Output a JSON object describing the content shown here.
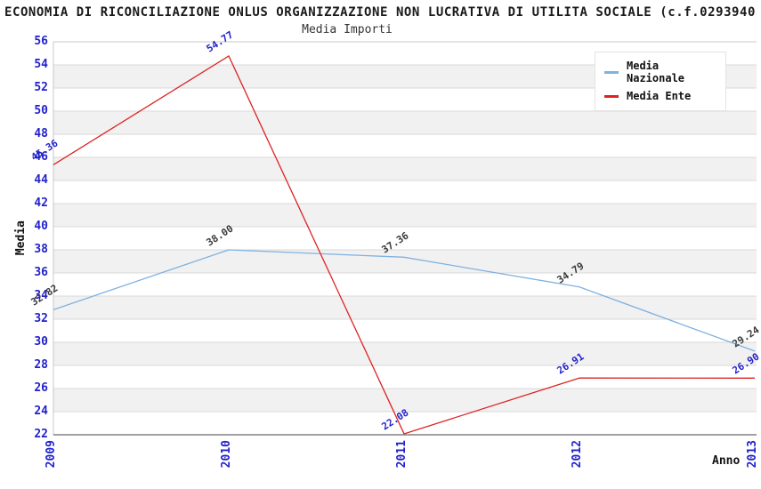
{
  "header": {
    "title": "ECONOMIA DI RICONCILIAZIONE ONLUS ORGANIZZAZIONE NON LUCRATIVA DI UTILITA SOCIALE (c.f.0293940",
    "subtitle": "Media Importi"
  },
  "chart_data": {
    "type": "line",
    "title": "Media Importi",
    "xlabel": "Anno",
    "ylabel": "Media",
    "categories": [
      "2009",
      "2010",
      "2011",
      "2012",
      "2013"
    ],
    "ylim": [
      22,
      56
    ],
    "ytick_step": 2,
    "grid": "horizontal-only",
    "band_fill": "alternating",
    "legend_position": "top-right",
    "series": [
      {
        "name": "Media Nazionale",
        "color": "#7EB2E2",
        "label_color": "#3a3a3a",
        "values": [
          32.82,
          38.0,
          37.36,
          34.79,
          29.24
        ],
        "labels": [
          "32.82",
          "38.00",
          "37.36",
          "34.79",
          "29.24"
        ]
      },
      {
        "name": "Media Ente",
        "color": "#DD2222",
        "label_color": "#2222CC",
        "values": [
          45.36,
          54.77,
          22.08,
          26.91,
          26.9
        ],
        "labels": [
          "45.36",
          "54.77",
          "22.08",
          "26.91",
          "26.90"
        ]
      }
    ],
    "colors": {
      "tick_label": "#2222CC",
      "band_gray": "#F1F1F1",
      "gridline": "#D9D9D9",
      "axis_bottom": "#808080",
      "axis_side": "#C8C8C8"
    }
  }
}
